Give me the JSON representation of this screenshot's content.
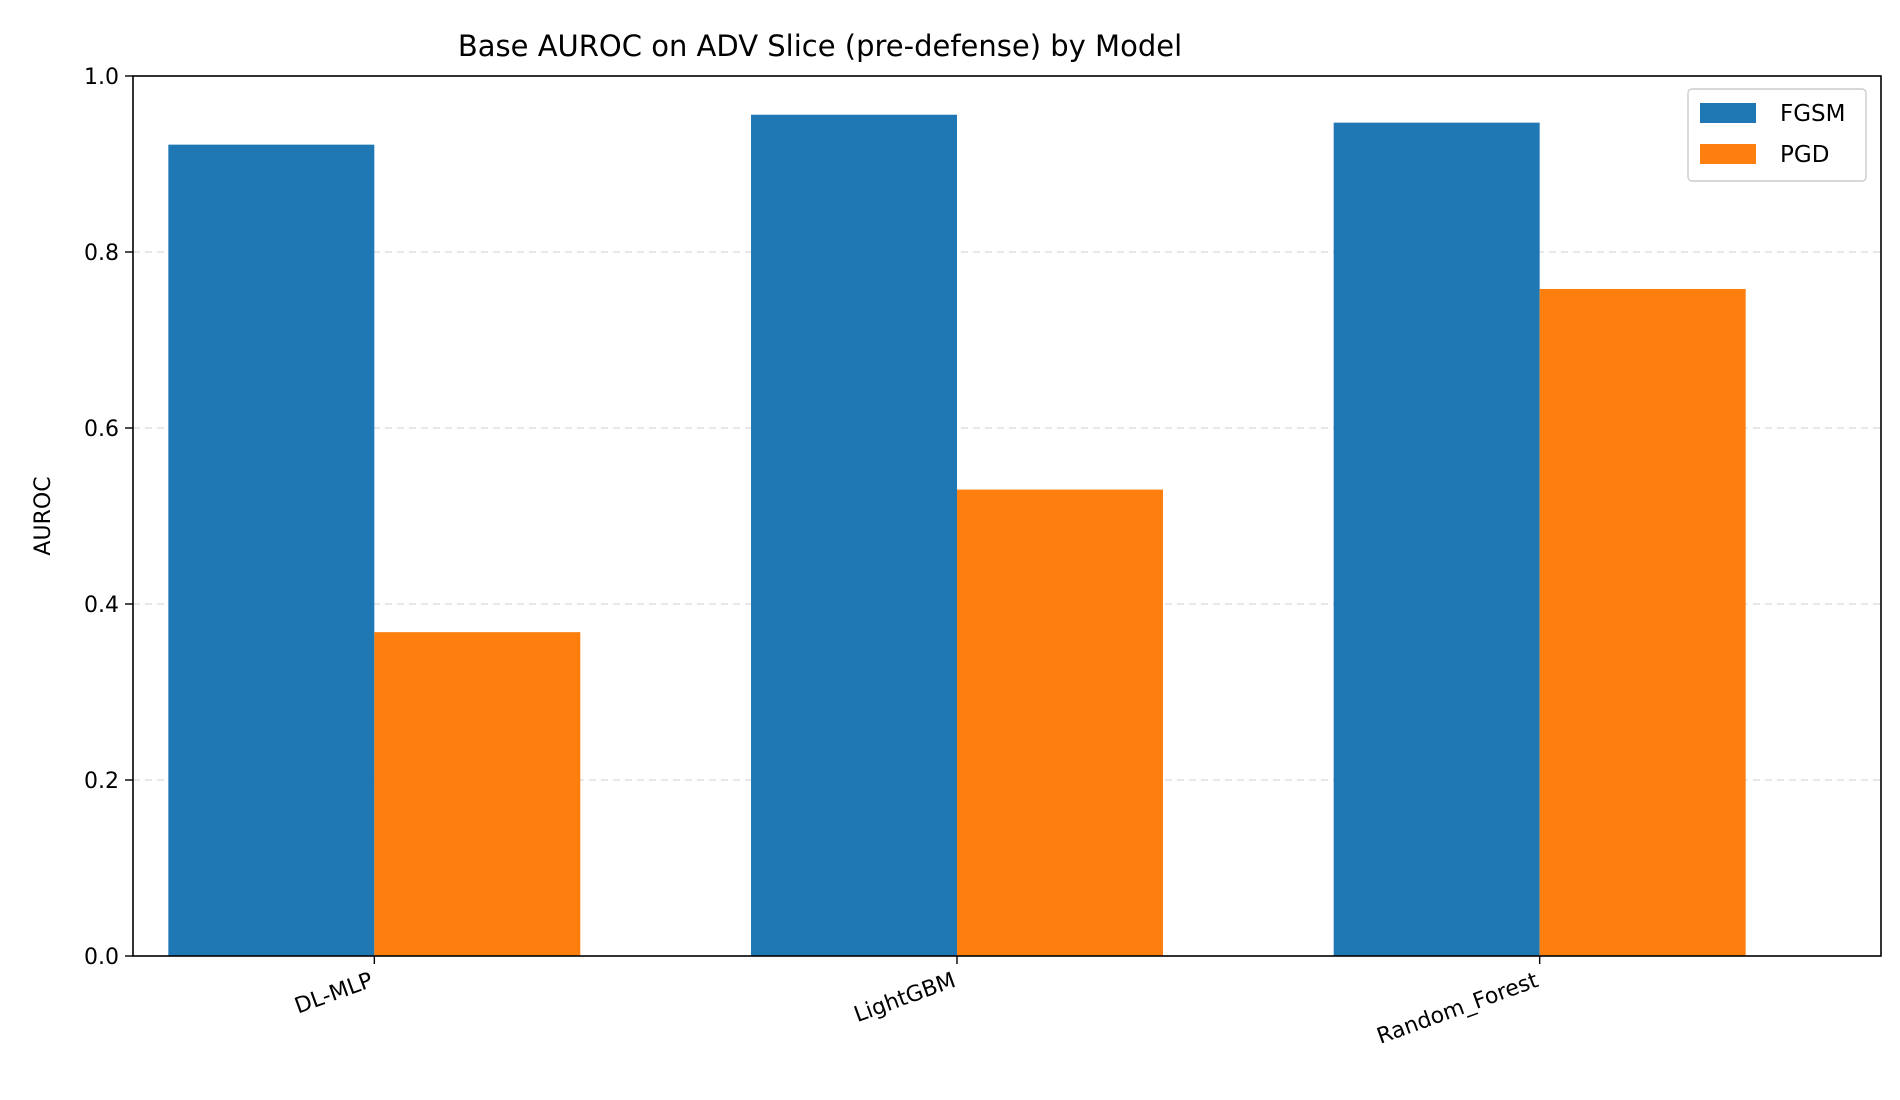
{
  "chart_data": {
    "type": "bar",
    "title": "Base AUROC on ADV Slice (pre-defense) by Model",
    "xlabel": "",
    "ylabel": "AUROC",
    "categories": [
      "DL-MLP",
      "LightGBM",
      "Random_Forest"
    ],
    "series": [
      {
        "name": "FGSM",
        "color": "#1f77b4",
        "values": [
          0.922,
          0.956,
          0.947
        ]
      },
      {
        "name": "PGD",
        "color": "#ff7f0e",
        "values": [
          0.368,
          0.53,
          0.758
        ]
      }
    ],
    "ylim": [
      0.0,
      1.0
    ],
    "yticks": [
      "0.0",
      "0.2",
      "0.4",
      "0.6",
      "0.8",
      "1.0"
    ],
    "grid": "y-dashed",
    "legend_position": "top-right"
  }
}
